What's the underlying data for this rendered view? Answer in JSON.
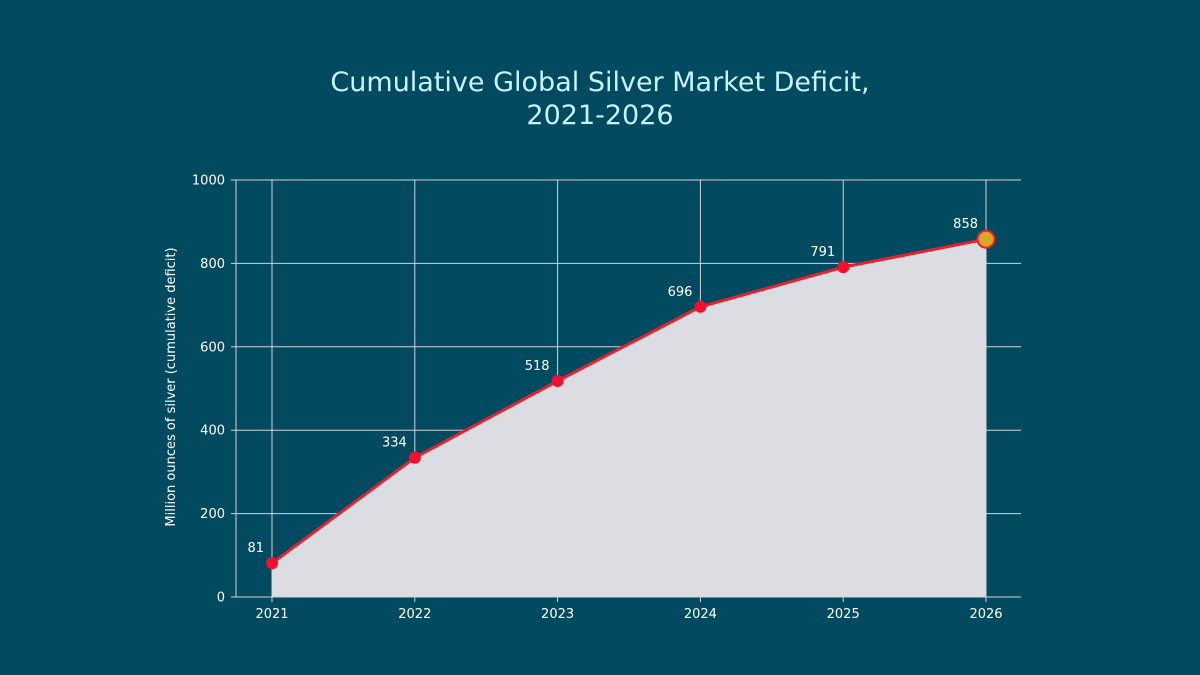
{
  "chart_data": {
    "type": "area",
    "title_lines": [
      "Cumulative Global Silver Market Deficit,",
      "2021-2026"
    ],
    "xlabel": "",
    "ylabel": "Million ounces of silver (cumulative deficit)",
    "categories": [
      "2021",
      "2022",
      "2023",
      "2024",
      "2025",
      "2026"
    ],
    "series": [
      {
        "values": [
          81,
          334,
          518,
          696,
          791,
          858
        ]
      }
    ],
    "data_labels": [
      "81",
      "334",
      "518",
      "696",
      "791",
      "858"
    ],
    "ylim": [
      0,
      1000
    ],
    "y_ticks": [
      0,
      200,
      400,
      600,
      800,
      1000
    ],
    "y_tick_labels": [
      "0",
      "200",
      "400",
      "600",
      "800",
      "1000"
    ],
    "grid": true,
    "highlight_last_point": true,
    "colors": {
      "background": "#024a5f",
      "area_fill": "#dcdde2",
      "line": "#e8202e",
      "marker": "#f50f2c",
      "highlight_marker": "#d9a72a",
      "grid": "#d0d3d8",
      "title": "#c9f2f7"
    }
  }
}
